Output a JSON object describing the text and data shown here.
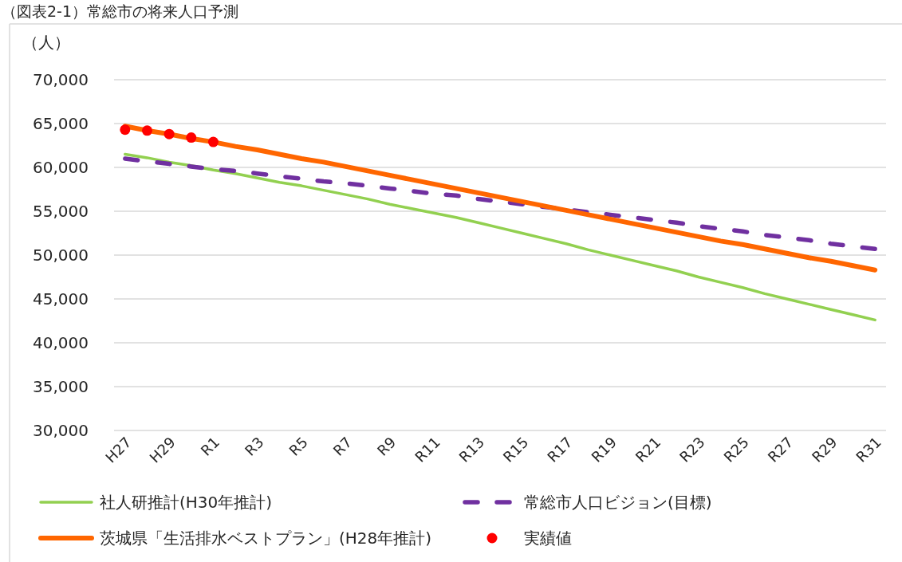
{
  "chart_data": {
    "type": "line",
    "title": "（図表2-1）常総市の将来人口予測",
    "ylabel": "（人）",
    "categories": [
      "H27",
      null,
      "H29",
      null,
      "R1",
      null,
      "R3",
      null,
      "R5",
      null,
      "R7",
      null,
      "R9",
      null,
      "R11",
      null,
      "R13",
      null,
      "R15",
      null,
      "R17",
      null,
      "R19",
      null,
      "R21",
      null,
      "R23",
      null,
      "R25",
      null,
      "R27",
      null,
      "R29",
      null,
      "R31"
    ],
    "series": [
      {
        "name": "社人研推計(H30年推計)",
        "color": "#92d050",
        "line_style": "solid",
        "values": [
          61500,
          61100,
          60600,
          60200,
          59700,
          59300,
          58800,
          58300,
          57900,
          57400,
          56900,
          56400,
          55800,
          55300,
          54800,
          54300,
          53700,
          53100,
          52500,
          51900,
          51300,
          50600,
          50000,
          49400,
          48800,
          48200,
          47500,
          46900,
          46300,
          45600,
          45000,
          44400,
          43800,
          43200,
          42600
        ]
      },
      {
        "name": "常総市人口ビジョン(目標)",
        "color": "#7030a0",
        "line_style": "dashed",
        "values": [
          61000,
          60700,
          60400,
          60100,
          59800,
          59600,
          59300,
          59000,
          58700,
          58400,
          58200,
          57900,
          57600,
          57300,
          57000,
          56800,
          56400,
          56100,
          55800,
          55500,
          55200,
          54900,
          54600,
          54300,
          54000,
          53700,
          53300,
          53000,
          52700,
          52300,
          52000,
          51700,
          51300,
          51000,
          50700
        ]
      },
      {
        "name": "茨城県「生活排水ベストプラン」(H28年推計)",
        "color": "#ff6600",
        "line_style": "solid",
        "values": [
          64700,
          64200,
          63800,
          63300,
          62900,
          62400,
          62000,
          61500,
          61000,
          60600,
          60100,
          59600,
          59100,
          58600,
          58100,
          57600,
          57100,
          56600,
          56100,
          55600,
          55100,
          54600,
          54100,
          53600,
          53100,
          52600,
          52100,
          51600,
          51200,
          50700,
          50200,
          49700,
          49300,
          48800,
          48300
        ]
      },
      {
        "name": "実績値",
        "color": "#ff0000",
        "type": "scatter",
        "marker": "circle",
        "values": [
          64300,
          64200,
          63800,
          63400,
          62900,
          null,
          null,
          null,
          null,
          null,
          null,
          null,
          null,
          null,
          null,
          null,
          null,
          null,
          null,
          null,
          null,
          null,
          null,
          null,
          null,
          null,
          null,
          null,
          null,
          null,
          null,
          null,
          null,
          null,
          null
        ]
      }
    ],
    "ylim": [
      30000,
      70000
    ],
    "yticks": [
      {
        "value": 30000,
        "label": "30,000"
      },
      {
        "value": 35000,
        "label": "35,000"
      },
      {
        "value": 40000,
        "label": "40,000"
      },
      {
        "value": 45000,
        "label": "45,000"
      },
      {
        "value": 50000,
        "label": "50,000"
      },
      {
        "value": 55000,
        "label": "55,000"
      },
      {
        "value": 60000,
        "label": "60,000"
      },
      {
        "value": 65000,
        "label": "65,000"
      },
      {
        "value": 70000,
        "label": "70,000"
      }
    ],
    "grid": "y",
    "legend": "bottom"
  }
}
